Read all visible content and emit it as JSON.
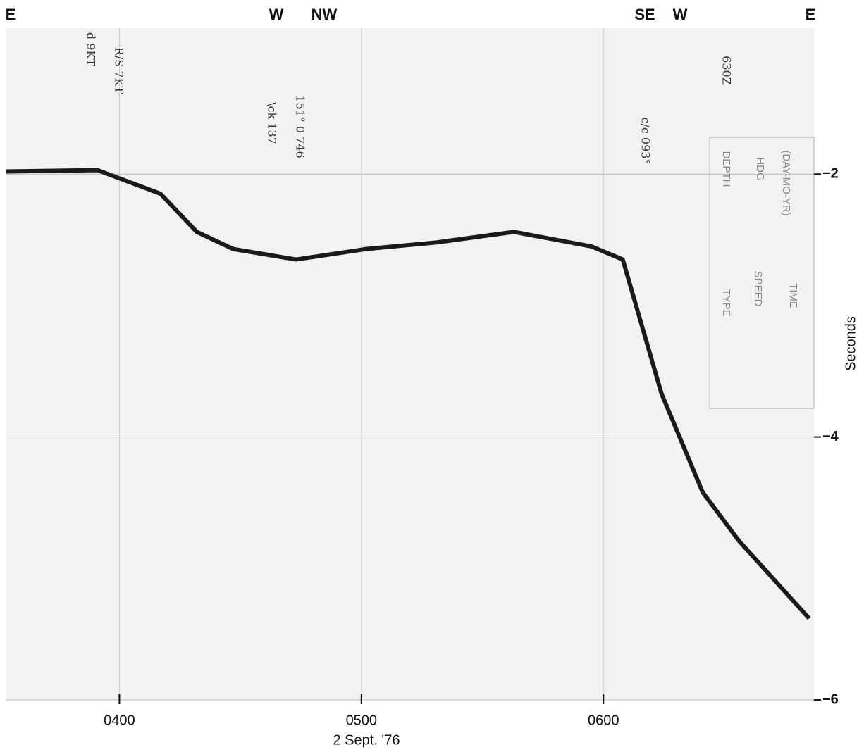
{
  "chart_data": {
    "type": "line",
    "directions": [
      "E",
      "W",
      "NW",
      "SE",
      "W",
      "E"
    ],
    "annotations": [
      "d 9KT",
      "R/S 7KT",
      "\\ck 137",
      "151° 0 746",
      "c/c 093°",
      "630Z",
      "(DAY-MO-YR)",
      "HDG",
      "DEPTH",
      "SPEED",
      "TYPE",
      "TIME"
    ],
    "xlabel": "2 Sept. '76",
    "ylabel": "Seconds",
    "x": [
      3.53,
      3.91,
      4.17,
      4.32,
      4.47,
      4.73,
      5.02,
      5.31,
      5.63,
      5.95,
      6.08,
      6.24,
      6.41,
      6.56,
      6.85
    ],
    "series": [
      {
        "color": "#1a1a1a",
        "values": [
          -1.98,
          -1.97,
          -2.15,
          -2.44,
          -2.57,
          -2.65,
          -2.57,
          -2.52,
          -2.44,
          -2.55,
          -2.65,
          -3.67,
          -4.42,
          -4.79,
          -5.38
        ]
      }
    ],
    "xlim": [
      3.53,
      6.87
    ],
    "ylim": [
      -6,
      -0.89
    ],
    "xticks": [
      {
        "value": 4,
        "label": "0400"
      },
      {
        "value": 5,
        "label": "0500"
      },
      {
        "value": 6,
        "label": "0600"
      }
    ],
    "yticks": [
      {
        "value": -2,
        "label": "−2"
      },
      {
        "value": -4,
        "label": "−4"
      },
      {
        "value": -6,
        "label": "−6"
      }
    ],
    "grid": true
  }
}
